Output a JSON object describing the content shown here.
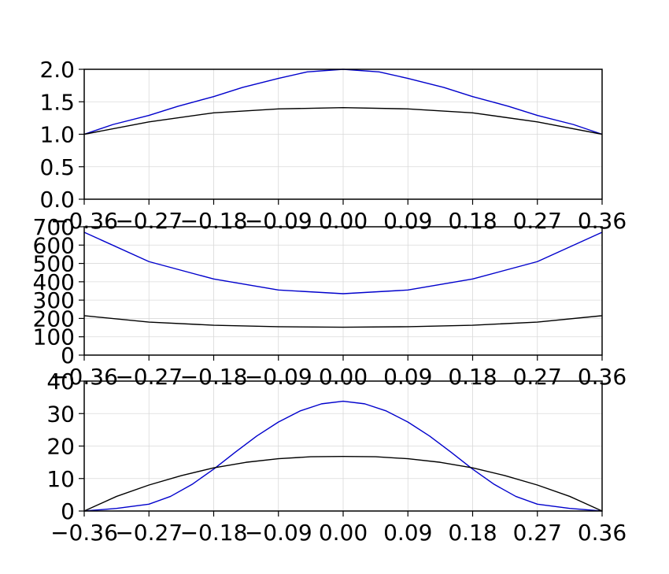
{
  "colors": {
    "background": "#ffffff",
    "axes": "#000000",
    "grid": "#d9d9d9",
    "series_blue": "#0000cc",
    "series_black": "#000000"
  },
  "chart_data": [
    {
      "type": "line",
      "xlim": [
        -0.36,
        0.36
      ],
      "ylim": [
        0,
        2.0
      ],
      "x_ticks": [
        "−0.36",
        "−0.27",
        "−0.18",
        "−0.09",
        "0.00",
        "0.09",
        "0.18",
        "0.27",
        "0.36"
      ],
      "y_ticks": [
        "0.0",
        "0.5",
        "1.0",
        "1.5",
        "2.0"
      ],
      "grid": true,
      "series": [
        {
          "color": "#0000cc",
          "x": [
            -0.36,
            -0.32,
            -0.27,
            -0.23,
            -0.18,
            -0.14,
            -0.09,
            -0.05,
            0.0,
            0.05,
            0.09,
            0.14,
            0.18,
            0.23,
            0.27,
            0.32,
            0.36
          ],
          "y": [
            1.0,
            1.15,
            1.29,
            1.43,
            1.58,
            1.72,
            1.86,
            1.96,
            2.0,
            1.96,
            1.86,
            1.72,
            1.58,
            1.43,
            1.29,
            1.15,
            1.0
          ]
        },
        {
          "color": "#000000",
          "x": [
            -0.36,
            -0.27,
            -0.18,
            -0.09,
            0.0,
            0.09,
            0.18,
            0.27,
            0.36
          ],
          "y": [
            1.0,
            1.19,
            1.33,
            1.39,
            1.41,
            1.39,
            1.33,
            1.19,
            1.0
          ]
        }
      ]
    },
    {
      "type": "line",
      "xlim": [
        -0.36,
        0.36
      ],
      "ylim": [
        0,
        700
      ],
      "x_ticks": [
        "−0.36",
        "−0.27",
        "−0.18",
        "−0.09",
        "0.00",
        "0.09",
        "0.18",
        "0.27",
        "0.36"
      ],
      "y_ticks": [
        "0",
        "100",
        "200",
        "300",
        "400",
        "500",
        "600",
        "700"
      ],
      "grid": true,
      "series": [
        {
          "color": "#0000cc",
          "x": [
            -0.36,
            -0.27,
            -0.18,
            -0.09,
            0.0,
            0.09,
            0.18,
            0.27,
            0.36
          ],
          "y": [
            670,
            510,
            415,
            355,
            335,
            355,
            415,
            510,
            670
          ]
        },
        {
          "color": "#000000",
          "x": [
            -0.36,
            -0.27,
            -0.18,
            -0.09,
            0.0,
            0.09,
            0.18,
            0.27,
            0.36
          ],
          "y": [
            215,
            180,
            163,
            155,
            152,
            155,
            163,
            180,
            215
          ]
        }
      ]
    },
    {
      "type": "line",
      "xlim": [
        -0.36,
        0.36
      ],
      "ylim": [
        0,
        40
      ],
      "x_ticks": [
        "−0.36",
        "−0.27",
        "−0.18",
        "−0.09",
        "0.00",
        "0.09",
        "0.18",
        "0.27",
        "0.36"
      ],
      "y_ticks": [
        "0",
        "10",
        "20",
        "30",
        "40"
      ],
      "grid": true,
      "series": [
        {
          "color": "#0000cc",
          "x": [
            -0.36,
            -0.315,
            -0.27,
            -0.24,
            -0.21,
            -0.18,
            -0.15,
            -0.12,
            -0.09,
            -0.06,
            -0.03,
            0.0,
            0.03,
            0.06,
            0.09,
            0.12,
            0.15,
            0.18,
            0.21,
            0.24,
            0.27,
            0.315,
            0.36
          ],
          "y": [
            0,
            0.8,
            2.1,
            4.5,
            8.2,
            12.9,
            18.1,
            23.1,
            27.4,
            30.8,
            33.0,
            33.8,
            33.0,
            30.8,
            27.4,
            23.1,
            18.1,
            12.9,
            8.2,
            4.5,
            2.1,
            0.8,
            0
          ]
        },
        {
          "color": "#000000",
          "x": [
            -0.36,
            -0.315,
            -0.27,
            -0.225,
            -0.18,
            -0.135,
            -0.09,
            -0.045,
            0.0,
            0.045,
            0.09,
            0.135,
            0.18,
            0.225,
            0.27,
            0.315,
            0.36
          ],
          "y": [
            0,
            4.5,
            8.0,
            10.9,
            13.3,
            15.0,
            16.1,
            16.7,
            16.8,
            16.7,
            16.1,
            15.0,
            13.3,
            10.9,
            8.0,
            4.5,
            0
          ]
        }
      ]
    }
  ]
}
